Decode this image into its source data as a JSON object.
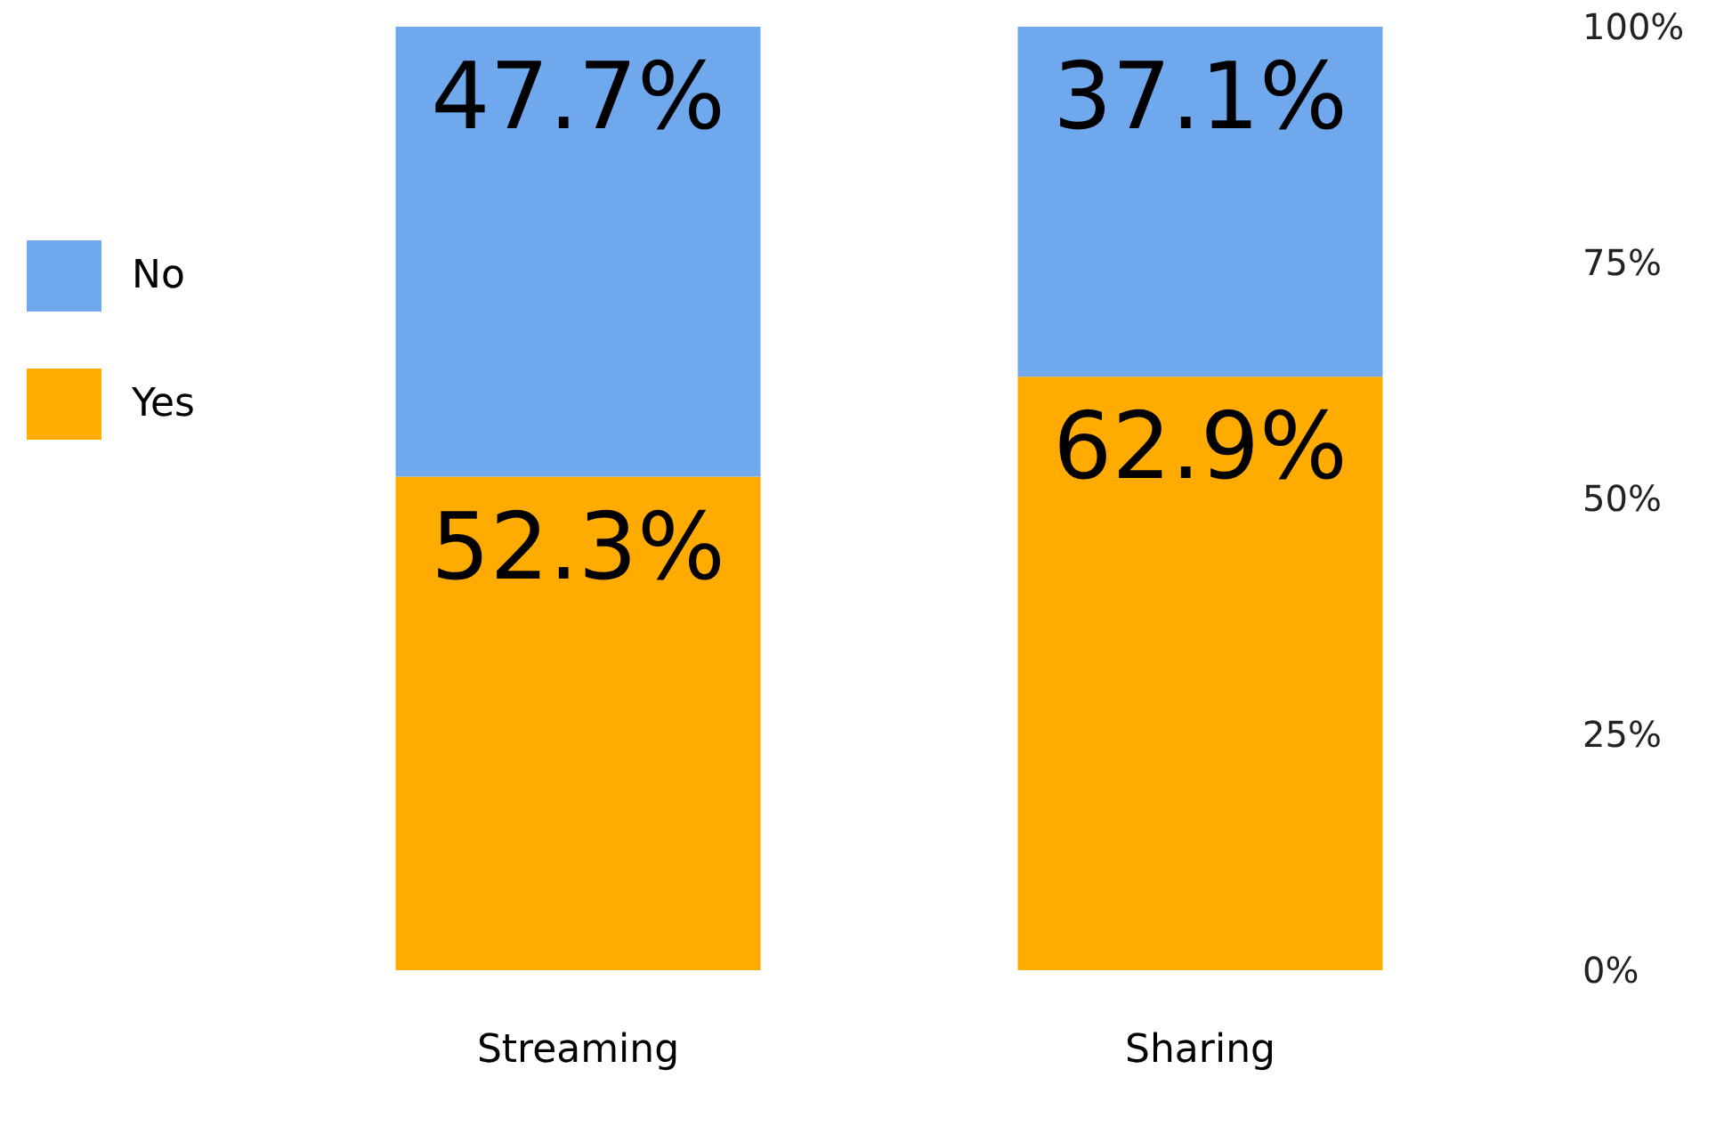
{
  "chart_data": {
    "type": "bar",
    "stacked": true,
    "categories": [
      "Streaming",
      "Sharing"
    ],
    "series": [
      {
        "name": "Yes",
        "color": "#ffab00",
        "values": [
          52.3,
          62.9
        ],
        "value_labels": [
          "52.3%",
          "62.9%"
        ]
      },
      {
        "name": "No",
        "color": "#70a8ee",
        "values": [
          47.7,
          37.1
        ],
        "value_labels": [
          "47.7%",
          "37.1%"
        ]
      }
    ],
    "ylim": [
      0,
      100
    ],
    "yticks": [
      {
        "value": 0,
        "label": "0%"
      },
      {
        "value": 25,
        "label": "25%"
      },
      {
        "value": 50,
        "label": "50%"
      },
      {
        "value": 75,
        "label": "75%"
      },
      {
        "value": 100,
        "label": "100%"
      }
    ],
    "grid": false,
    "legend": "left"
  }
}
